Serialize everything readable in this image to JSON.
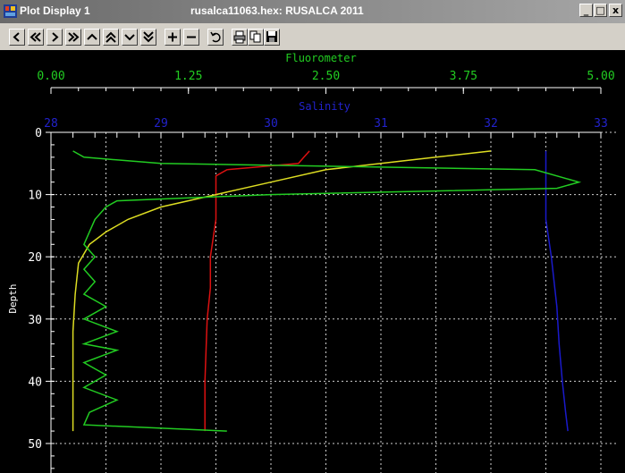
{
  "window": {
    "title": "Plot Display 1",
    "subtitle": "rusalca11063.hex: RUSALCA 2011",
    "buttons": {
      "minimize": "_",
      "maximize": "□",
      "close": "x"
    }
  },
  "toolbar": {
    "icons": [
      "first-icon",
      "previous-page-icon",
      "next-icon",
      "last-page-icon",
      "up-icon",
      "page-up-icon",
      "down-icon",
      "page-down-icon",
      "zoom-in-icon",
      "zoom-out-icon",
      "undo-icon",
      "print-icon",
      "copy-icon",
      "save-icon"
    ]
  },
  "colors": {
    "fluorometer": "#22cc22",
    "salinity": "#1a1acc",
    "red_trace": "#dd1111",
    "yellow_trace": "#dddd22",
    "background": "#000000",
    "grid": "#ffffff"
  },
  "chart_data": {
    "type": "line",
    "ylabel": "Depth",
    "ylim": [
      0,
      50
    ],
    "y_inverted": true,
    "y_ticks": [
      "0",
      "10",
      "20",
      "30",
      "40",
      "50"
    ],
    "axes_top": [
      {
        "label": "Fluorometer",
        "range": [
          0,
          5
        ],
        "ticks": [
          "0.00",
          "1.25",
          "2.50",
          "3.75",
          "5.00"
        ],
        "color": "#22cc22"
      },
      {
        "label": "Salinity",
        "range": [
          28,
          33
        ],
        "ticks": [
          "28",
          "29",
          "30",
          "31",
          "32",
          "33"
        ],
        "color": "#2222cc"
      }
    ],
    "grid": true,
    "series": [
      {
        "axis": "salinity",
        "color": "#1a1acc",
        "points": [
          [
            32.5,
            3
          ],
          [
            32.5,
            4
          ],
          [
            32.5,
            6
          ],
          [
            32.5,
            8
          ],
          [
            32.5,
            10
          ],
          [
            32.5,
            14
          ],
          [
            32.55,
            20
          ],
          [
            32.6,
            28
          ],
          [
            32.62,
            34
          ],
          [
            32.65,
            40
          ],
          [
            32.68,
            45
          ],
          [
            32.7,
            48
          ]
        ]
      },
      {
        "axis": "salinity",
        "color": "#dd1111",
        "points": [
          [
            30.35,
            3
          ],
          [
            30.3,
            4
          ],
          [
            30.25,
            5
          ],
          [
            29.6,
            6
          ],
          [
            29.5,
            7
          ],
          [
            29.5,
            10
          ],
          [
            29.5,
            14
          ],
          [
            29.45,
            20
          ],
          [
            29.45,
            25
          ],
          [
            29.42,
            30
          ],
          [
            29.4,
            40
          ],
          [
            29.4,
            48
          ]
        ]
      },
      {
        "axis": "salinity",
        "color": "#dddd22",
        "points": [
          [
            32.0,
            3
          ],
          [
            31.5,
            4
          ],
          [
            31.0,
            5
          ],
          [
            30.5,
            6
          ],
          [
            30.0,
            8
          ],
          [
            29.5,
            10
          ],
          [
            29.0,
            12
          ],
          [
            28.7,
            14
          ],
          [
            28.5,
            16
          ],
          [
            28.35,
            18
          ],
          [
            28.25,
            21
          ],
          [
            28.22,
            26
          ],
          [
            28.2,
            32
          ],
          [
            28.2,
            40
          ],
          [
            28.2,
            48
          ]
        ]
      },
      {
        "axis": "fluorometer",
        "color": "#22cc22",
        "points": [
          [
            0.2,
            3
          ],
          [
            0.3,
            4
          ],
          [
            1.0,
            5
          ],
          [
            4.4,
            6
          ],
          [
            4.8,
            8
          ],
          [
            4.6,
            9
          ],
          [
            2.0,
            10
          ],
          [
            0.6,
            11
          ],
          [
            0.5,
            12
          ],
          [
            0.4,
            14
          ],
          [
            0.35,
            16
          ],
          [
            0.3,
            18
          ],
          [
            0.4,
            20
          ],
          [
            0.3,
            22
          ],
          [
            0.4,
            24
          ],
          [
            0.3,
            26
          ],
          [
            0.5,
            28
          ],
          [
            0.3,
            30
          ],
          [
            0.6,
            32
          ],
          [
            0.3,
            34
          ],
          [
            0.6,
            35
          ],
          [
            0.3,
            37
          ],
          [
            0.5,
            39
          ],
          [
            0.3,
            41
          ],
          [
            0.6,
            43
          ],
          [
            0.35,
            45
          ],
          [
            0.3,
            47
          ],
          [
            1.6,
            48
          ]
        ]
      }
    ]
  }
}
